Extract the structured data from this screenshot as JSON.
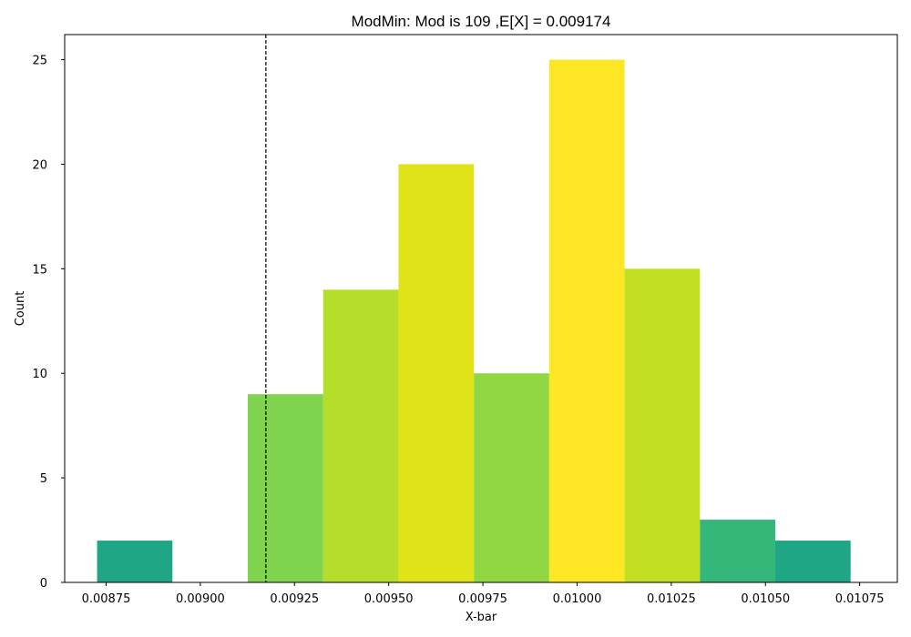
{
  "chart_data": {
    "type": "bar",
    "title": "ModMin: Mod is 109 ,E[X] = 0.009174",
    "xlabel": "X-bar",
    "ylabel": "Count",
    "xlim": [
      0.00864,
      0.01085
    ],
    "ylim": [
      0,
      26.2
    ],
    "bin_width": 0.0002,
    "bins": [
      {
        "left": 0.008726,
        "count": 2,
        "color": "#21a685"
      },
      {
        "left": 0.008926,
        "count": 0,
        "color": "#21a685"
      },
      {
        "left": 0.009126,
        "count": 9,
        "color": "#7fd34e"
      },
      {
        "left": 0.009326,
        "count": 14,
        "color": "#b5de2b"
      },
      {
        "left": 0.009526,
        "count": 20,
        "color": "#dfe318"
      },
      {
        "left": 0.009726,
        "count": 10,
        "color": "#90d743"
      },
      {
        "left": 0.009926,
        "count": 25,
        "color": "#fde725"
      },
      {
        "left": 0.010126,
        "count": 15,
        "color": "#c2df23"
      },
      {
        "left": 0.010326,
        "count": 3,
        "color": "#35b779"
      },
      {
        "left": 0.010526,
        "count": 2,
        "color": "#21a685"
      }
    ],
    "x_ticks": [
      {
        "value": 0.00875,
        "label": "0.00875"
      },
      {
        "value": 0.009,
        "label": "0.00900"
      },
      {
        "value": 0.00925,
        "label": "0.00925"
      },
      {
        "value": 0.0095,
        "label": "0.00950"
      },
      {
        "value": 0.00975,
        "label": "0.00975"
      },
      {
        "value": 0.01,
        "label": "0.01000"
      },
      {
        "value": 0.01025,
        "label": "0.01025"
      },
      {
        "value": 0.0105,
        "label": "0.01050"
      },
      {
        "value": 0.01075,
        "label": "0.01075"
      }
    ],
    "y_ticks": [
      {
        "value": 0,
        "label": "0"
      },
      {
        "value": 5,
        "label": "5"
      },
      {
        "value": 10,
        "label": "10"
      },
      {
        "value": 15,
        "label": "15"
      },
      {
        "value": 20,
        "label": "20"
      },
      {
        "value": 25,
        "label": "25"
      }
    ],
    "reference_line": {
      "x": 0.009174,
      "style": "dashed",
      "color": "#000000"
    },
    "grid": false
  }
}
